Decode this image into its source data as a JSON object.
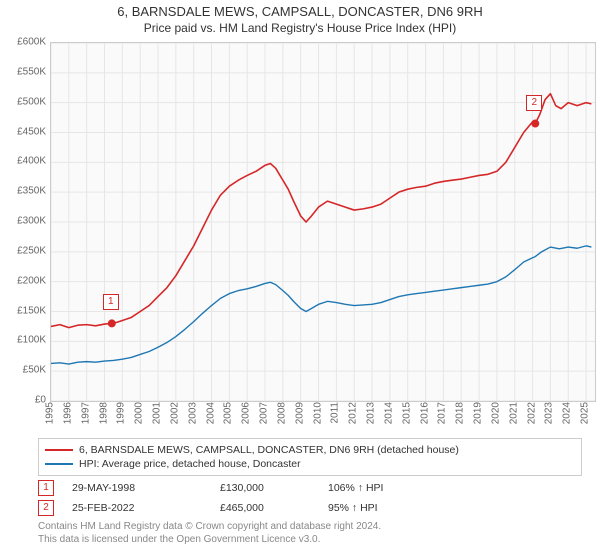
{
  "title": "6, BARNSDALE MEWS, CAMPSALL, DONCASTER, DN6 9RH",
  "subtitle": "Price paid vs. HM Land Registry's House Price Index (HPI)",
  "chart": {
    "background_color": "#fafafa",
    "grid_color": "#e6e6e6",
    "border_color": "#cccccc",
    "y": {
      "min": 0,
      "max": 600000,
      "step": 50000,
      "labels": [
        "£0",
        "£50K",
        "£100K",
        "£150K",
        "£200K",
        "£250K",
        "£300K",
        "£350K",
        "£400K",
        "£450K",
        "£500K",
        "£550K",
        "£600K"
      ],
      "label_color": "#666666",
      "fontsize": 10
    },
    "x": {
      "min": 1995,
      "max": 2025.5,
      "ticks": [
        1995,
        1996,
        1997,
        1998,
        1999,
        2000,
        2001,
        2002,
        2003,
        2004,
        2005,
        2006,
        2007,
        2008,
        2009,
        2010,
        2011,
        2012,
        2013,
        2014,
        2015,
        2016,
        2017,
        2018,
        2019,
        2020,
        2021,
        2022,
        2023,
        2024,
        2025
      ],
      "label_color": "#666666",
      "fontsize": 10
    },
    "series": [
      {
        "name": "6, BARNSDALE MEWS, CAMPSALL, DONCASTER, DN6 9RH (detached house)",
        "color": "#d62728",
        "line_width": 1.6,
        "data": [
          [
            1995,
            125000
          ],
          [
            1995.5,
            128000
          ],
          [
            1996,
            123000
          ],
          [
            1996.5,
            127000
          ],
          [
            1997,
            128000
          ],
          [
            1997.5,
            126000
          ],
          [
            1998,
            129000
          ],
          [
            1998.41,
            130000
          ],
          [
            1998.7,
            132000
          ],
          [
            1999,
            135000
          ],
          [
            1999.5,
            140000
          ],
          [
            2000,
            150000
          ],
          [
            2000.5,
            160000
          ],
          [
            2001,
            175000
          ],
          [
            2001.5,
            190000
          ],
          [
            2002,
            210000
          ],
          [
            2002.5,
            235000
          ],
          [
            2003,
            260000
          ],
          [
            2003.5,
            290000
          ],
          [
            2004,
            320000
          ],
          [
            2004.5,
            345000
          ],
          [
            2005,
            360000
          ],
          [
            2005.5,
            370000
          ],
          [
            2006,
            378000
          ],
          [
            2006.5,
            385000
          ],
          [
            2007,
            395000
          ],
          [
            2007.3,
            398000
          ],
          [
            2007.6,
            390000
          ],
          [
            2008,
            370000
          ],
          [
            2008.3,
            355000
          ],
          [
            2008.6,
            335000
          ],
          [
            2009,
            310000
          ],
          [
            2009.3,
            300000
          ],
          [
            2009.6,
            310000
          ],
          [
            2010,
            325000
          ],
          [
            2010.5,
            335000
          ],
          [
            2011,
            330000
          ],
          [
            2011.5,
            325000
          ],
          [
            2012,
            320000
          ],
          [
            2012.5,
            322000
          ],
          [
            2013,
            325000
          ],
          [
            2013.5,
            330000
          ],
          [
            2014,
            340000
          ],
          [
            2014.5,
            350000
          ],
          [
            2015,
            355000
          ],
          [
            2015.5,
            358000
          ],
          [
            2016,
            360000
          ],
          [
            2016.5,
            365000
          ],
          [
            2017,
            368000
          ],
          [
            2017.5,
            370000
          ],
          [
            2018,
            372000
          ],
          [
            2018.5,
            375000
          ],
          [
            2019,
            378000
          ],
          [
            2019.5,
            380000
          ],
          [
            2020,
            385000
          ],
          [
            2020.5,
            400000
          ],
          [
            2021,
            425000
          ],
          [
            2021.5,
            450000
          ],
          [
            2022,
            468000
          ],
          [
            2022.15,
            465000
          ],
          [
            2022.4,
            480000
          ],
          [
            2022.7,
            505000
          ],
          [
            2023,
            515000
          ],
          [
            2023.3,
            495000
          ],
          [
            2023.6,
            490000
          ],
          [
            2024,
            500000
          ],
          [
            2024.5,
            495000
          ],
          [
            2025,
            500000
          ],
          [
            2025.3,
            498000
          ]
        ]
      },
      {
        "name": "HPI: Average price, detached house, Doncaster",
        "color": "#1f77b4",
        "line_width": 1.4,
        "data": [
          [
            1995,
            63000
          ],
          [
            1995.5,
            64000
          ],
          [
            1996,
            62000
          ],
          [
            1996.5,
            65000
          ],
          [
            1997,
            66000
          ],
          [
            1997.5,
            65000
          ],
          [
            1998,
            67000
          ],
          [
            1998.5,
            68000
          ],
          [
            1999,
            70000
          ],
          [
            1999.5,
            73000
          ],
          [
            2000,
            78000
          ],
          [
            2000.5,
            83000
          ],
          [
            2001,
            90000
          ],
          [
            2001.5,
            98000
          ],
          [
            2002,
            108000
          ],
          [
            2002.5,
            120000
          ],
          [
            2003,
            133000
          ],
          [
            2003.5,
            147000
          ],
          [
            2004,
            160000
          ],
          [
            2004.5,
            172000
          ],
          [
            2005,
            180000
          ],
          [
            2005.5,
            185000
          ],
          [
            2006,
            188000
          ],
          [
            2006.5,
            192000
          ],
          [
            2007,
            197000
          ],
          [
            2007.3,
            199000
          ],
          [
            2007.6,
            195000
          ],
          [
            2008,
            185000
          ],
          [
            2008.3,
            177000
          ],
          [
            2008.6,
            167000
          ],
          [
            2009,
            155000
          ],
          [
            2009.3,
            150000
          ],
          [
            2009.6,
            155000
          ],
          [
            2010,
            162000
          ],
          [
            2010.5,
            167000
          ],
          [
            2011,
            165000
          ],
          [
            2011.5,
            162000
          ],
          [
            2012,
            160000
          ],
          [
            2012.5,
            161000
          ],
          [
            2013,
            162000
          ],
          [
            2013.5,
            165000
          ],
          [
            2014,
            170000
          ],
          [
            2014.5,
            175000
          ],
          [
            2015,
            178000
          ],
          [
            2015.5,
            180000
          ],
          [
            2016,
            182000
          ],
          [
            2016.5,
            184000
          ],
          [
            2017,
            186000
          ],
          [
            2017.5,
            188000
          ],
          [
            2018,
            190000
          ],
          [
            2018.5,
            192000
          ],
          [
            2019,
            194000
          ],
          [
            2019.5,
            196000
          ],
          [
            2020,
            200000
          ],
          [
            2020.5,
            208000
          ],
          [
            2021,
            220000
          ],
          [
            2021.5,
            233000
          ],
          [
            2022,
            240000
          ],
          [
            2022.15,
            242000
          ],
          [
            2022.5,
            250000
          ],
          [
            2023,
            258000
          ],
          [
            2023.5,
            255000
          ],
          [
            2024,
            258000
          ],
          [
            2024.5,
            256000
          ],
          [
            2025,
            260000
          ],
          [
            2025.3,
            258000
          ]
        ]
      }
    ],
    "markers": [
      {
        "index": "1",
        "x": 1998.41,
        "y": 130000,
        "color": "#d62728"
      },
      {
        "index": "2",
        "x": 2022.15,
        "y": 465000,
        "color": "#d62728"
      }
    ],
    "marker_radius": 4
  },
  "legend": {
    "border_color": "#cccccc",
    "fontsize": 10.5
  },
  "sale_points": [
    {
      "index": "1",
      "date": "29-MAY-1998",
      "price": "£130,000",
      "pct": "106% ↑ HPI",
      "color": "#d62728"
    },
    {
      "index": "2",
      "date": "25-FEB-2022",
      "price": "£465,000",
      "pct": "95% ↑ HPI",
      "color": "#d62728"
    }
  ],
  "footer": {
    "line1": "Contains HM Land Registry data © Crown copyright and database right 2024.",
    "line2": "This data is licensed under the Open Government Licence v3.0.",
    "color": "#888888",
    "fontsize": 10
  }
}
